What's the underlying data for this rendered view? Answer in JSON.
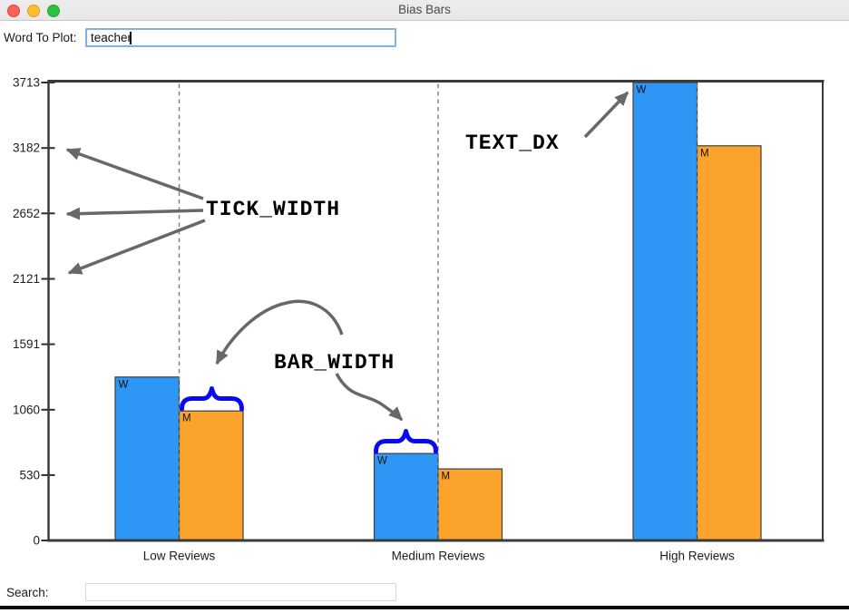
{
  "window": {
    "title": "Bias Bars"
  },
  "word_plot": {
    "label": "Word To Plot:",
    "value": "teacher"
  },
  "search": {
    "label": "Search:",
    "value": ""
  },
  "chart_data": {
    "type": "bar",
    "title": "",
    "xlabel": "",
    "ylabel": "",
    "categories": [
      "Low Reviews",
      "Medium Reviews",
      "High Reviews"
    ],
    "series": [
      {
        "name": "W",
        "color": "#2e96f4",
        "values": [
          1325,
          705,
          3713
        ]
      },
      {
        "name": "M",
        "color": "#fba32b",
        "values": [
          1050,
          580,
          3200
        ]
      }
    ],
    "y_ticks": [
      0,
      530,
      1060,
      1591,
      2121,
      2652,
      3182,
      3713
    ],
    "ylim": [
      0,
      3713
    ],
    "legend_position": "none",
    "bar_letter_labels": "series name drawn inside top-left corner of each bar",
    "gridlines": "dashed vertical line at each category tick, drawn over bars"
  },
  "annotations": {
    "tick_width_label": "TICK_WIDTH",
    "bar_width_label": "BAR_WIDTH",
    "text_dx_label": "TEXT_DX",
    "arrow_color": "#686868",
    "brace_color": "#0a0aee"
  }
}
